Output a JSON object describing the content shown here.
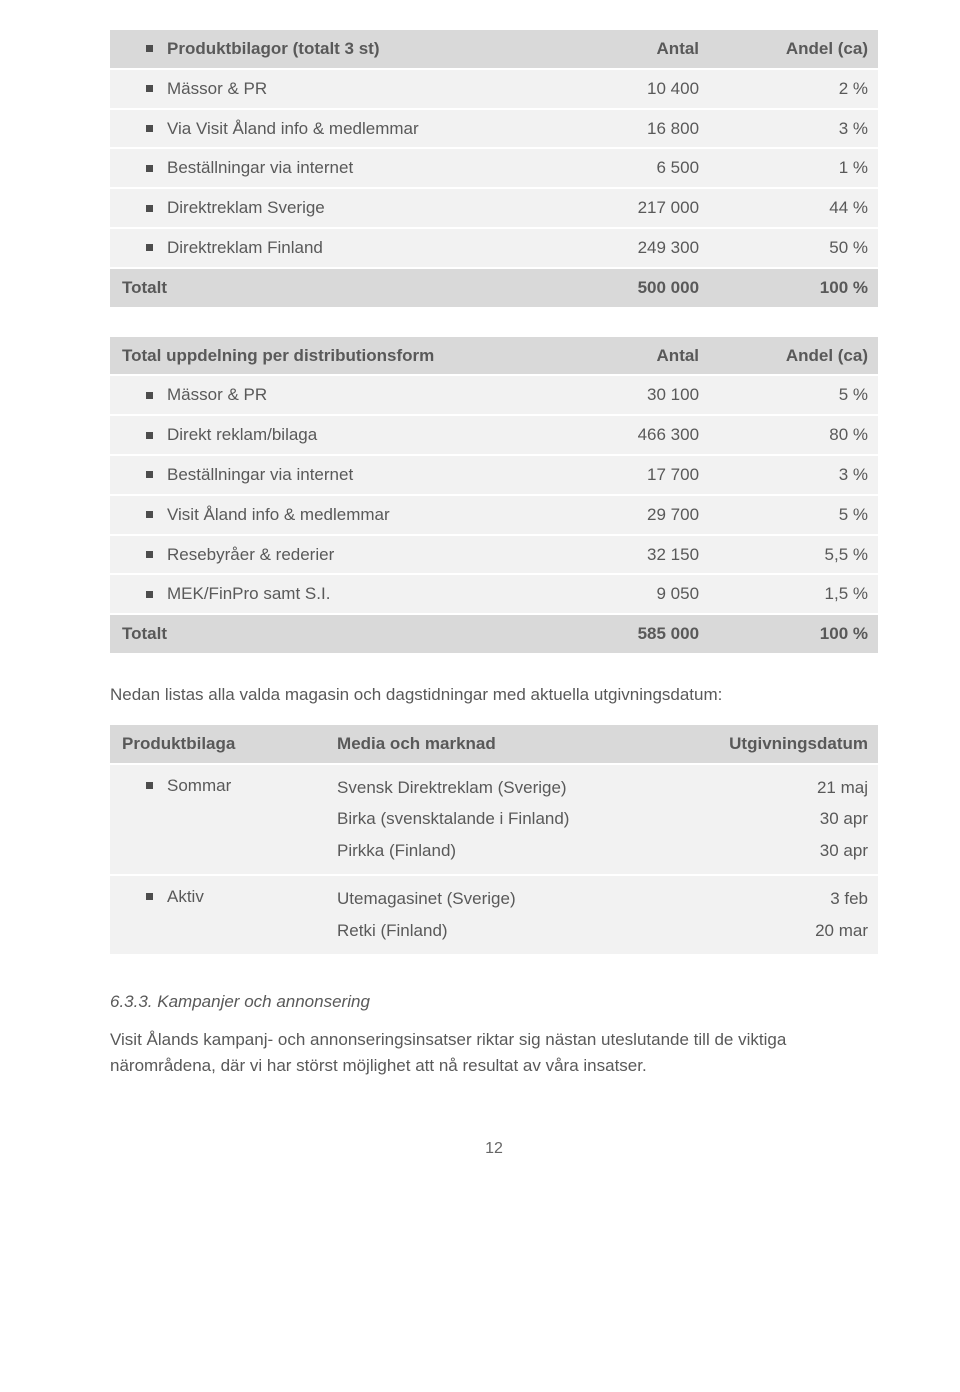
{
  "table1": {
    "headers": {
      "label": "Produktbilagor (totalt 3 st)",
      "col1": "Antal",
      "col2": "Andel (ca)"
    },
    "rows": [
      {
        "label": "Mässor & PR",
        "v1": "10 400",
        "v2": "2 %"
      },
      {
        "label": "Via Visit Åland info & medlemmar",
        "v1": "16 800",
        "v2": "3 %"
      },
      {
        "label": "Beställningar via internet",
        "v1": "6 500",
        "v2": "1 %"
      },
      {
        "label": "Direktreklam Sverige",
        "v1": "217 000",
        "v2": "44 %"
      },
      {
        "label": "Direktreklam Finland",
        "v1": "249 300",
        "v2": "50 %"
      }
    ],
    "total": {
      "label": "Totalt",
      "v1": "500 000",
      "v2": "100 %"
    }
  },
  "table2": {
    "headers": {
      "label": "Total uppdelning per distributionsform",
      "col1": "Antal",
      "col2": "Andel (ca)"
    },
    "rows": [
      {
        "label": "Mässor & PR",
        "v1": "30 100",
        "v2": "5 %"
      },
      {
        "label": "Direkt reklam/bilaga",
        "v1": "466 300",
        "v2": "80 %"
      },
      {
        "label": "Beställningar via internet",
        "v1": "17 700",
        "v2": "3 %"
      },
      {
        "label": "Visit Åland info & medlemmar",
        "v1": "29 700",
        "v2": "5 %"
      },
      {
        "label": "Resebyråer & rederier",
        "v1": "32 150",
        "v2": "5,5 %"
      },
      {
        "label": "MEK/FinPro samt S.I.",
        "v1": "9 050",
        "v2": "1,5 %"
      }
    ],
    "total": {
      "label": "Totalt",
      "v1": "585 000",
      "v2": "100 %"
    }
  },
  "para1": "Nedan listas alla valda magasin och dagstidningar med aktuella utgivningsdatum:",
  "table3": {
    "headers": {
      "p": "Produktbilaga",
      "m": "Media och marknad",
      "d": "Utgivningsdatum"
    },
    "rows": [
      {
        "product": "Sommar",
        "media": [
          "Svensk Direktreklam (Sverige)",
          "Birka (svensktalande i Finland)",
          "Pirkka (Finland)"
        ],
        "dates": [
          "21 maj",
          "30 apr",
          "30 apr"
        ]
      },
      {
        "product": "Aktiv",
        "media": [
          "Utemagasinet (Sverige)",
          "Retki (Finland)"
        ],
        "dates": [
          "3 feb",
          "20 mar"
        ]
      }
    ]
  },
  "section": {
    "num": "6.3.3. Kampanjer och annonsering"
  },
  "body": "Visit Ålands kampanj- och annonseringsinsatser riktar sig nästan uteslutande till de viktiga närområdena, där vi har störst möjlighet att nå resultat av våra insatser.",
  "pageNum": "12",
  "colors": {
    "text": "#595959",
    "header_bg": "#d9d9d9",
    "row_bg": "#f2f2f2",
    "bullet": "#4d4d4d"
  }
}
